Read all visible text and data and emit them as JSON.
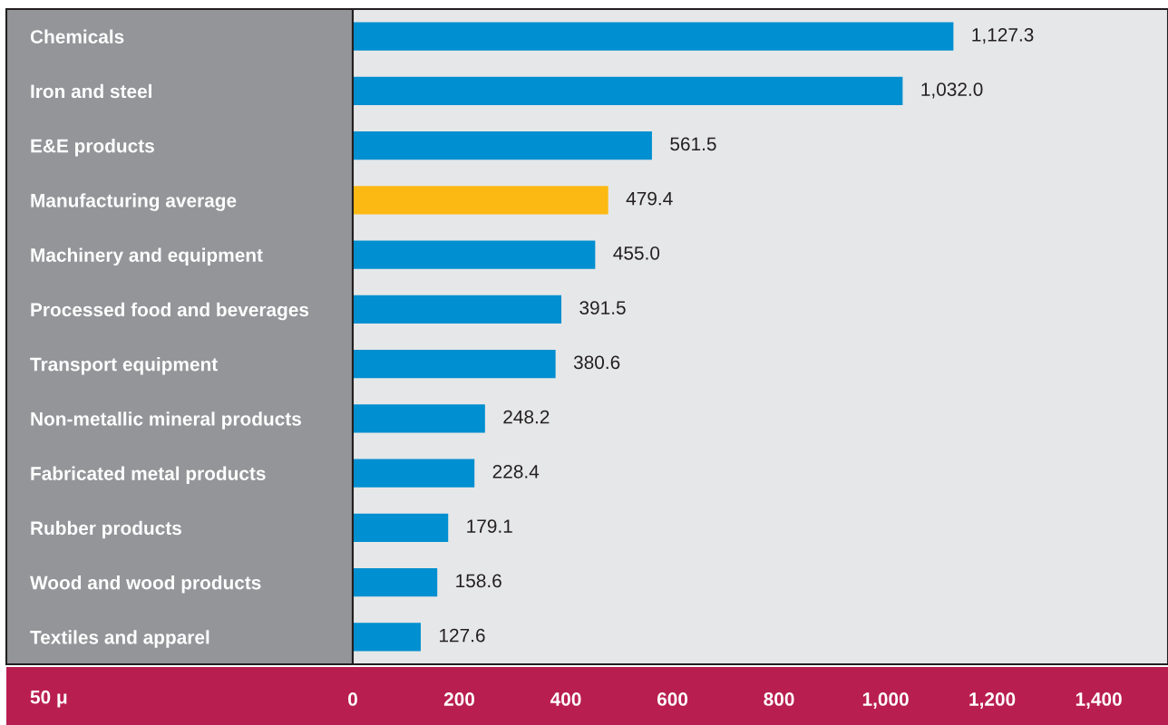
{
  "chart_data": {
    "type": "bar",
    "orientation": "horizontal",
    "xlabel": "50 μ",
    "categories": [
      "Chemicals",
      "Iron and steel",
      "E&E products",
      "Manufacturing average",
      "Machinery and equipment",
      "Processed food and beverages",
      "Transport equipment",
      "Non-metallic mineral products",
      "Fabricated metal products",
      "Rubber products",
      "Wood and wood products",
      "Textiles and apparel"
    ],
    "values": [
      1127.3,
      1032.0,
      561.5,
      479.4,
      455.0,
      391.5,
      380.6,
      248.2,
      228.4,
      179.1,
      158.6,
      127.6
    ],
    "colors": [
      "#008fd0",
      "#008fd0",
      "#008fd0",
      "#fdb913",
      "#008fd0",
      "#008fd0",
      "#008fd0",
      "#008fd0",
      "#008fd0",
      "#008fd0",
      "#008fd0",
      "#008fd0"
    ],
    "value_labels": [
      "1,127.3",
      "1,032.0",
      "561.5",
      "479.4",
      "455.0",
      "391.5",
      "380.6",
      "248.2",
      "228.4",
      "179.1",
      "158.6",
      "127.6"
    ],
    "xlim": [
      0,
      1530
    ],
    "xticks": [
      0,
      {
        "value": 200,
        "label": "200"
      },
      {
        "value": 400,
        "label": "400"
      },
      {
        "value": 600,
        "label": "600"
      },
      {
        "value": 800,
        "label": "800"
      },
      {
        "value": 1000,
        "label": "1,000"
      },
      {
        "value": 1200,
        "label": "1,200"
      },
      {
        "value": 1400,
        "label": "1,400"
      }
    ],
    "grid": false
  }
}
